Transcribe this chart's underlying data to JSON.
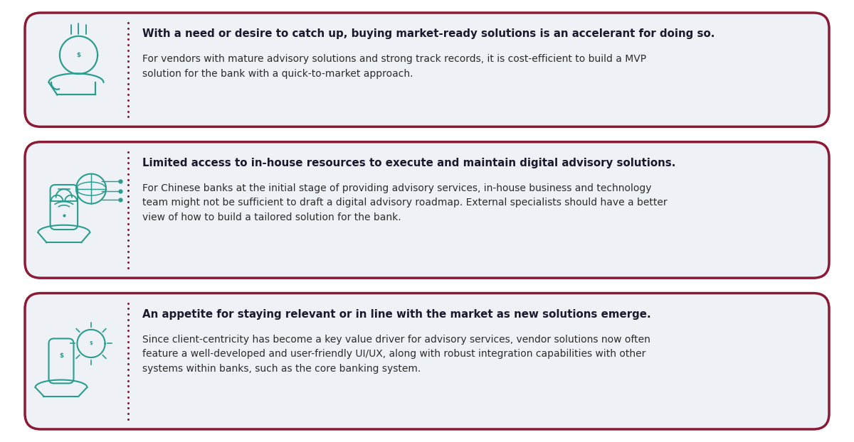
{
  "background_color": "#ffffff",
  "card_bg_color": "#eef1f6",
  "card_border_color": "#8b1a34",
  "divider_color": "#8b1a34",
  "title_color": "#1a1a2e",
  "body_color": "#2c2c2c",
  "icon_color": "#2a9d8f",
  "cards": [
    {
      "title": "With a need or desire to catch up, buying market-ready solutions is an accelerant for doing so.",
      "body": "For vendors with mature advisory solutions and strong track records, it is cost-efficient to build a MVP\nsolution for the bank with a quick-to-market approach.",
      "icon_type": "coin_hand"
    },
    {
      "title": "Limited access to in-house resources to execute and maintain digital advisory solutions.",
      "body": "For Chinese banks at the initial stage of providing advisory services, in-house business and technology\nteam might not be sufficient to draft a digital advisory roadmap. External specialists should have a better\nview of how to build a tailored solution for the bank.",
      "icon_type": "phone_cloud"
    },
    {
      "title": "An appetite for staying relevant or in line with the market as new solutions emerge.",
      "body": "Since client-centricity has become a key value driver for advisory services, vendor solutions now often\nfeature a well-developed and user-friendly UI/UX, along with robust integration capabilities with other\nsystems within banks, such as the core banking system.",
      "icon_type": "phone_coin"
    }
  ],
  "figsize": [
    12.0,
    6.22
  ],
  "dpi": 100
}
